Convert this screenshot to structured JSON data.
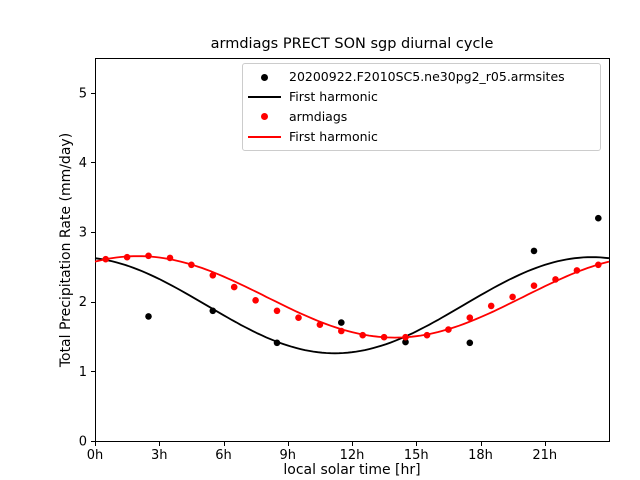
{
  "title": "armdiags PRECT SON sgp diurnal cycle",
  "legend": {
    "entries": [
      {
        "label": "20200922.F2010SC5.ne30pg2_r05.armsites",
        "marker": "dot",
        "color": "#000000"
      },
      {
        "label": "First harmonic",
        "marker": "line",
        "color": "#000000"
      },
      {
        "label": "armdiags",
        "marker": "dot",
        "color": "#ff0000"
      },
      {
        "label": "First harmonic",
        "marker": "line",
        "color": "#ff0000"
      }
    ]
  },
  "chart_data": {
    "type": "scatter",
    "title": "armdiags PRECT SON sgp diurnal cycle",
    "xlabel": "local solar time [hr]",
    "ylabel": "Total Precipitation Rate (mm/day)",
    "xlim": [
      0,
      24
    ],
    "ylim": [
      0,
      5.5
    ],
    "grid": false,
    "legend_position": "upper center",
    "xticks": [
      {
        "value": 0,
        "label": "0h"
      },
      {
        "value": 3,
        "label": "3h"
      },
      {
        "value": 6,
        "label": "6h"
      },
      {
        "value": 9,
        "label": "9h"
      },
      {
        "value": 12,
        "label": "12h"
      },
      {
        "value": 15,
        "label": "15h"
      },
      {
        "value": 18,
        "label": "18h"
      },
      {
        "value": 21,
        "label": "21h"
      }
    ],
    "yticks": [
      {
        "value": 0,
        "label": "0"
      },
      {
        "value": 1,
        "label": "1"
      },
      {
        "value": 2,
        "label": "2"
      },
      {
        "value": 3,
        "label": "3"
      },
      {
        "value": 4,
        "label": "4"
      },
      {
        "value": 5,
        "label": "5"
      }
    ],
    "series": [
      {
        "name": "20200922.F2010SC5.ne30pg2_r05.armsites",
        "type": "scatter",
        "color": "#000000",
        "x": [
          2.5,
          5.5,
          8.5,
          11.5,
          14.5,
          17.5,
          20.5,
          23.5
        ],
        "y": [
          1.79,
          1.87,
          1.41,
          1.7,
          1.42,
          1.41,
          2.73,
          3.2
        ]
      },
      {
        "name": "First harmonic",
        "type": "line",
        "color": "#000000",
        "harmonic": {
          "mean": 1.95,
          "amplitude": 0.69,
          "peak_hour": 23.2
        }
      },
      {
        "name": "armdiags",
        "type": "scatter",
        "color": "#ff0000",
        "x": [
          0.5,
          1.5,
          2.5,
          3.5,
          4.5,
          5.5,
          6.5,
          7.5,
          8.5,
          9.5,
          10.5,
          11.5,
          12.5,
          13.5,
          14.5,
          15.5,
          16.5,
          17.5,
          18.5,
          19.5,
          20.5,
          21.5,
          22.5,
          23.5
        ],
        "y": [
          2.61,
          2.64,
          2.66,
          2.63,
          2.53,
          2.38,
          2.21,
          2.02,
          1.87,
          1.77,
          1.67,
          1.58,
          1.52,
          1.49,
          1.49,
          1.52,
          1.6,
          1.77,
          1.94,
          2.07,
          2.23,
          2.32,
          2.45,
          2.53
        ]
      },
      {
        "name": "First harmonic",
        "type": "line",
        "color": "#ff0000",
        "harmonic": {
          "mean": 2.07,
          "amplitude": 0.585,
          "peak_hour": 2.0
        }
      }
    ]
  }
}
